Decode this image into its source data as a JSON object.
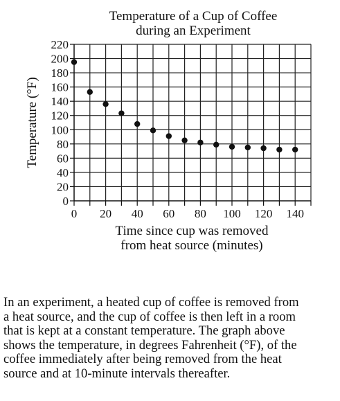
{
  "chart_data": {
    "type": "scatter",
    "title_lines": [
      "Temperature of a Cup of Coffee",
      "during an Experiment"
    ],
    "xlabel_lines": [
      "Time since cup was removed",
      "from heat source (minutes)"
    ],
    "ylabel": "Temperature (°F)",
    "xlim": [
      0,
      150
    ],
    "ylim": [
      0,
      220
    ],
    "x_ticks": [
      0,
      20,
      40,
      60,
      80,
      100,
      120,
      140
    ],
    "y_ticks": [
      0,
      20,
      40,
      60,
      80,
      100,
      120,
      140,
      160,
      180,
      200,
      220
    ],
    "x_tick_labels": [
      "0",
      "20",
      "40",
      "60",
      "80",
      "100",
      "120",
      "140"
    ],
    "y_tick_labels": [
      "0",
      "20",
      "40",
      "60",
      "80",
      "100",
      "120",
      "140",
      "160",
      "180",
      "200",
      "220"
    ],
    "grid": true,
    "point_color": "#111111",
    "points": [
      {
        "x": 0,
        "y": 195
      },
      {
        "x": 10,
        "y": 153
      },
      {
        "x": 20,
        "y": 136
      },
      {
        "x": 30,
        "y": 123
      },
      {
        "x": 40,
        "y": 108
      },
      {
        "x": 50,
        "y": 99
      },
      {
        "x": 60,
        "y": 91
      },
      {
        "x": 70,
        "y": 85
      },
      {
        "x": 80,
        "y": 82
      },
      {
        "x": 90,
        "y": 79
      },
      {
        "x": 100,
        "y": 76
      },
      {
        "x": 110,
        "y": 75
      },
      {
        "x": 120,
        "y": 74
      },
      {
        "x": 130,
        "y": 72
      },
      {
        "x": 140,
        "y": 72
      }
    ]
  },
  "paragraph": {
    "lines": [
      "In an experiment, a heated cup of coffee is removed from",
      "a heat source, and the cup of coffee is then left in a room",
      "that is kept at a constant temperature. The graph above",
      "shows the temperature, in degrees Fahrenheit (°F), of the",
      "coffee immediately after being removed from the heat",
      "source and at 10-minute intervals thereafter."
    ]
  }
}
